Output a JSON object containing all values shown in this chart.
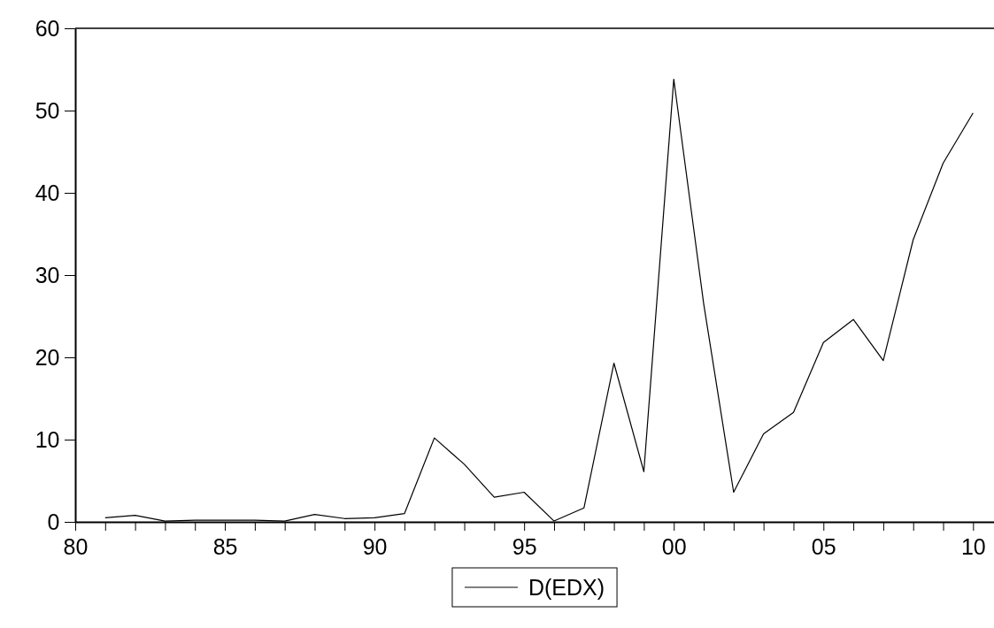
{
  "chart_data": {
    "type": "line",
    "x": [
      1981,
      1982,
      1983,
      1984,
      1985,
      1986,
      1987,
      1988,
      1989,
      1990,
      1991,
      1992,
      1993,
      1994,
      1995,
      1996,
      1997,
      1998,
      1999,
      2000,
      2001,
      2002,
      2003,
      2004,
      2005,
      2006,
      2007,
      2008,
      2009,
      2010
    ],
    "series": [
      {
        "name": "D(EDX)",
        "color": "#000000",
        "values": [
          0.5,
          0.8,
          0.1,
          0.2,
          0.2,
          0.2,
          0.1,
          0.9,
          0.4,
          0.5,
          1.0,
          10.2,
          7.0,
          3.0,
          3.6,
          0.1,
          1.7,
          19.3,
          6.1,
          53.8,
          26.5,
          3.6,
          10.7,
          13.3,
          21.8,
          24.6,
          19.6,
          34.3,
          43.6,
          49.7
        ]
      }
    ],
    "xlim": [
      1980,
      2010.7
    ],
    "xticks": [
      {
        "value": 1980,
        "label": "80"
      },
      {
        "value": 1981,
        "label": null
      },
      {
        "value": 1982,
        "label": null
      },
      {
        "value": 1983,
        "label": null
      },
      {
        "value": 1984,
        "label": null
      },
      {
        "value": 1985,
        "label": "85"
      },
      {
        "value": 1986,
        "label": null
      },
      {
        "value": 1987,
        "label": null
      },
      {
        "value": 1988,
        "label": null
      },
      {
        "value": 1989,
        "label": null
      },
      {
        "value": 1990,
        "label": "90"
      },
      {
        "value": 1991,
        "label": null
      },
      {
        "value": 1992,
        "label": null
      },
      {
        "value": 1993,
        "label": null
      },
      {
        "value": 1994,
        "label": null
      },
      {
        "value": 1995,
        "label": "95"
      },
      {
        "value": 1996,
        "label": null
      },
      {
        "value": 1997,
        "label": null
      },
      {
        "value": 1998,
        "label": null
      },
      {
        "value": 1999,
        "label": null
      },
      {
        "value": 2000,
        "label": "00"
      },
      {
        "value": 2001,
        "label": null
      },
      {
        "value": 2002,
        "label": null
      },
      {
        "value": 2003,
        "label": null
      },
      {
        "value": 2004,
        "label": null
      },
      {
        "value": 2005,
        "label": "05"
      },
      {
        "value": 2006,
        "label": null
      },
      {
        "value": 2007,
        "label": null
      },
      {
        "value": 2008,
        "label": null
      },
      {
        "value": 2009,
        "label": null
      },
      {
        "value": 2010,
        "label": "10"
      }
    ],
    "ylim": [
      0,
      60
    ],
    "yticks": [
      0,
      10,
      20,
      30,
      40,
      50,
      60
    ],
    "grid": false,
    "legend": "bottom",
    "marker": "none",
    "line_style": "solid"
  }
}
